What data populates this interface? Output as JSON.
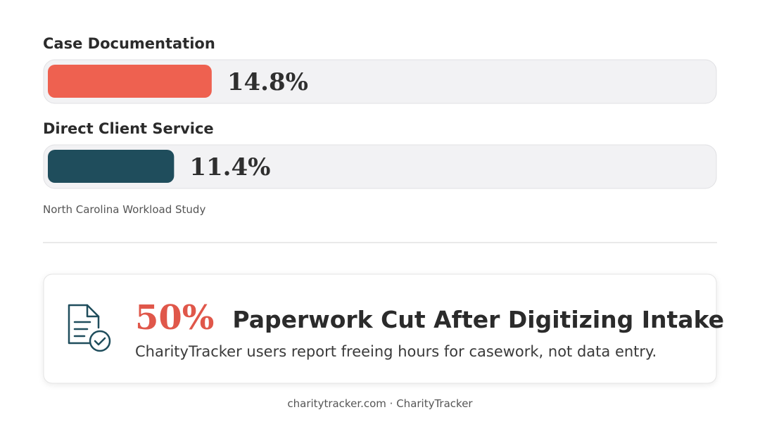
{
  "chart_data": {
    "type": "bar",
    "orientation": "horizontal",
    "categories": [
      "Case Documentation",
      "Direct Client Service"
    ],
    "values": [
      14.8,
      11.4
    ],
    "value_labels": [
      "14.8%",
      "11.4%"
    ],
    "colors": [
      "#ee6150",
      "#1f4d5c"
    ],
    "xlim": [
      0,
      60
    ],
    "source": "North Carolina Workload Study"
  },
  "callout": {
    "stat": "50%",
    "title": "Paperwork Cut After Digitizing Intake",
    "text": "CharityTracker users report freeing hours for casework, not data entry."
  },
  "footer": "charitytracker.com · CharityTracker"
}
